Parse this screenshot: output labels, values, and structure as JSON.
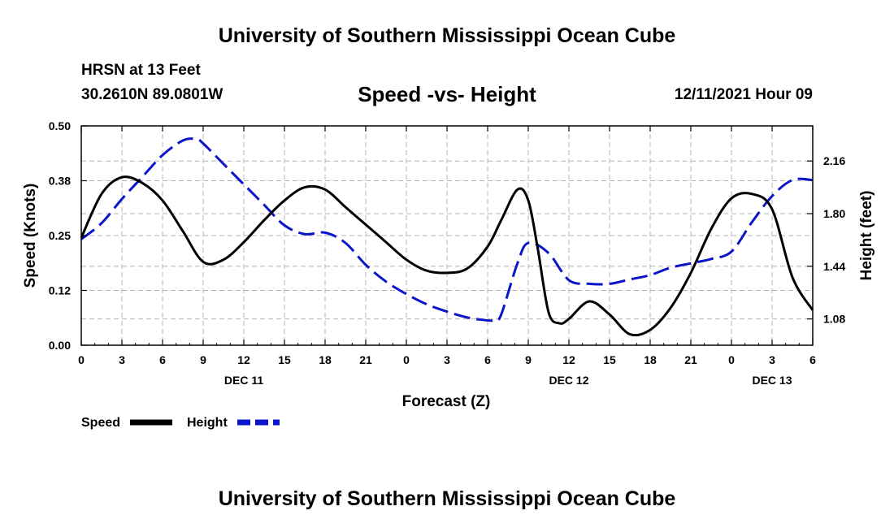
{
  "header": {
    "title": "University of Southern Mississippi Ocean Cube",
    "station": "HRSN at 13 Feet",
    "coordinates": "30.2610N  89.0801W",
    "chart_title": "Speed -vs- Height",
    "datetime": "12/11/2021 Hour 09"
  },
  "footer": {
    "title": "University of Southern Mississippi Ocean Cube"
  },
  "colors": {
    "speed": "#000000",
    "height": "#0a14c8",
    "grid": "#b4b4b4"
  },
  "chart_data": {
    "type": "line",
    "title": "Speed -vs- Height",
    "xlabel": "Forecast (Z)",
    "ylabel_left": "Speed (Knots)",
    "ylabel_right": "Height (feet)",
    "x_range": [
      0,
      54
    ],
    "x_tick_labels": [
      "0",
      "3",
      "6",
      "9",
      "12",
      "15",
      "18",
      "21",
      "0",
      "3",
      "6",
      "9",
      "12",
      "15",
      "18",
      "21",
      "0",
      "3",
      "6"
    ],
    "date_labels": [
      {
        "label": "DEC 11",
        "hour": 12
      },
      {
        "label": "DEC 12",
        "hour": 36
      },
      {
        "label": "DEC 13",
        "hour": 51
      }
    ],
    "y_left": {
      "range": [
        0,
        0.5
      ],
      "ticks": [
        "0.00",
        "0.12",
        "0.25",
        "0.38",
        "0.50"
      ],
      "tick_values": [
        0,
        0.125,
        0.25,
        0.375,
        0.5
      ]
    },
    "y_right": {
      "range": [
        0.9,
        2.4
      ],
      "ticks": [
        "1.08",
        "1.44",
        "1.80",
        "2.16"
      ],
      "tick_values": [
        1.08,
        1.44,
        1.8,
        2.16
      ]
    },
    "grid": true,
    "series": [
      {
        "name": "Speed",
        "axis": "left",
        "style": "solid",
        "x": [
          0,
          1.5,
          3,
          4.5,
          6,
          7.5,
          9,
          10.5,
          12,
          13.5,
          15,
          16.5,
          18,
          19.5,
          21,
          22.5,
          24,
          25.5,
          27,
          28.5,
          30,
          31,
          32.2,
          33,
          33.7,
          34.5,
          35.3,
          36,
          37.5,
          39,
          40.5,
          42,
          43.5,
          45,
          46.5,
          48,
          49.5,
          51,
          52.5,
          54
        ],
        "values": [
          0.245,
          0.345,
          0.383,
          0.37,
          0.33,
          0.26,
          0.19,
          0.195,
          0.235,
          0.285,
          0.33,
          0.36,
          0.355,
          0.315,
          0.275,
          0.235,
          0.195,
          0.17,
          0.165,
          0.175,
          0.225,
          0.285,
          0.355,
          0.33,
          0.22,
          0.075,
          0.05,
          0.06,
          0.1,
          0.07,
          0.025,
          0.035,
          0.085,
          0.165,
          0.265,
          0.335,
          0.345,
          0.31,
          0.155,
          0.08
        ]
      },
      {
        "name": "Height",
        "axis": "right",
        "style": "dashed",
        "x": [
          0,
          1.5,
          3,
          4.5,
          6,
          7.5,
          8.5,
          9,
          10.5,
          12,
          13.5,
          15,
          16.5,
          18,
          19.5,
          21,
          22.5,
          24,
          25.5,
          27,
          28.5,
          29.5,
          30.5,
          31,
          32.2,
          33,
          34.5,
          36,
          37.5,
          39,
          40.5,
          42,
          43.5,
          45,
          46.5,
          48,
          49.5,
          51,
          52.5,
          54
        ],
        "values": [
          1.625,
          1.735,
          1.9,
          2.05,
          2.2,
          2.3,
          2.31,
          2.28,
          2.14,
          2.0,
          1.86,
          1.72,
          1.66,
          1.67,
          1.6,
          1.45,
          1.335,
          1.25,
          1.18,
          1.13,
          1.09,
          1.075,
          1.07,
          1.11,
          1.46,
          1.6,
          1.53,
          1.345,
          1.32,
          1.32,
          1.35,
          1.38,
          1.43,
          1.46,
          1.49,
          1.54,
          1.74,
          1.92,
          2.03,
          2.03
        ]
      }
    ]
  },
  "legend": {
    "speed_label": "Speed",
    "height_label": "Height"
  }
}
